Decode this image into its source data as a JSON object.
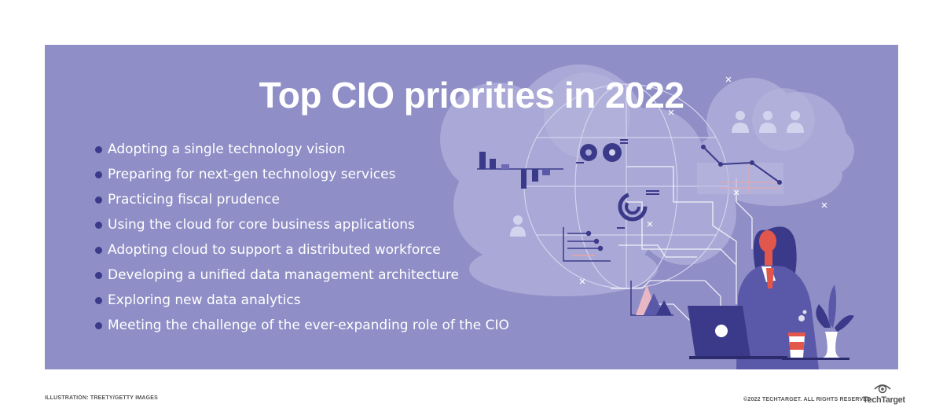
{
  "title": "Top CIO priorities in 2022",
  "priorities": [
    "Adopting a single technology vision",
    "Preparing for next-gen technology services",
    "Practicing fiscal prudence",
    "Using the cloud for core business applications",
    "Adopting cloud to support a distributed workforce",
    "Developing a unified data management architecture",
    "Exploring new data analytics",
    "Meeting the challenge of the ever-expanding role of the CIO"
  ],
  "footer": {
    "credit": "ILLUSTRATION: TREETY/GETTY IMAGES",
    "copyright": "©2022 TECHTARGET. ALL RIGHTS RESERVED",
    "brand": "TechTarget"
  },
  "colors": {
    "panel": "#8f8ec6",
    "cloud": "#a9a8d6",
    "dark": "#3b3a8a",
    "accent": "#e2574c"
  },
  "icons": {
    "illustration": "cloud-computing-woman-laptop-illustration",
    "brand": "techtarget-eye-icon"
  }
}
